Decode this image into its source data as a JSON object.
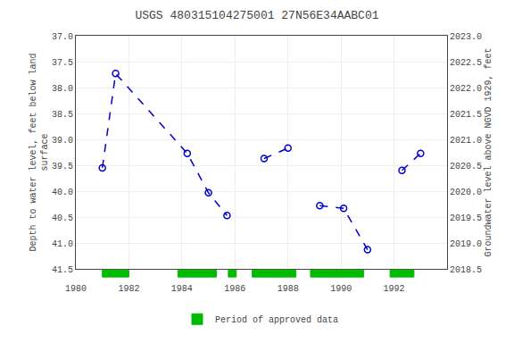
{
  "chart_data": {
    "type": "line",
    "title": "USGS 480315104275001 27N56E34AABC01",
    "y_label": "Depth to water level, feet below land\nsurface",
    "y2_label": "Groundwater level above NGVD 1929, feet",
    "x": [
      1981.0,
      1981.5,
      1984.2,
      1985.0,
      1985.7,
      null,
      1987.1,
      1988.0,
      null,
      1989.2,
      1990.1,
      1991.0,
      null,
      1992.3,
      1993.0
    ],
    "series": [
      {
        "color": "#0000cc",
        "marker": "open_circle",
        "line_style": "dashed",
        "values": [
          39.55,
          37.73,
          39.27,
          40.03,
          40.47,
          null,
          39.37,
          39.17,
          null,
          40.28,
          40.33,
          41.13,
          null,
          39.6,
          39.27
        ]
      }
    ],
    "periods": [
      {
        "name": "Period of approved data",
        "color": "#00bb00",
        "ranges": [
          [
            1981.0,
            1982.0
          ],
          [
            1983.85,
            1985.3
          ],
          [
            1985.75,
            1986.05
          ],
          [
            1986.65,
            1988.3
          ],
          [
            1988.85,
            1990.85
          ],
          [
            1991.85,
            1992.75
          ]
        ]
      }
    ],
    "xlim": [
      1980,
      1994
    ],
    "xticks": [
      1980,
      1982,
      1984,
      1986,
      1988,
      1990,
      1992
    ],
    "ylim": [
      41.5,
      37.0
    ],
    "yticks": [
      {
        "value": 37.0,
        "label": "37.0"
      },
      37.5,
      {
        "value": 38.0,
        "label": "38.0"
      },
      38.5,
      {
        "value": 39.0,
        "label": "39.0"
      },
      39.5,
      {
        "value": 40.0,
        "label": "40.0"
      },
      40.5,
      {
        "value": 41.0,
        "label": "41.0"
      },
      41.5
    ],
    "y2lim": [
      2018.5,
      2023.0
    ],
    "y2ticks": [
      2018.5,
      {
        "value": 2019.0,
        "label": "2019.0"
      },
      2019.5,
      {
        "value": 2020.0,
        "label": "2020.0"
      },
      2020.5,
      {
        "value": 2021.0,
        "label": "2021.0"
      },
      2021.5,
      {
        "value": 2022.0,
        "label": "2022.0"
      },
      2022.5,
      {
        "value": 2023.0,
        "label": "2023.0"
      }
    ],
    "grid": true,
    "legend": "bottom"
  }
}
